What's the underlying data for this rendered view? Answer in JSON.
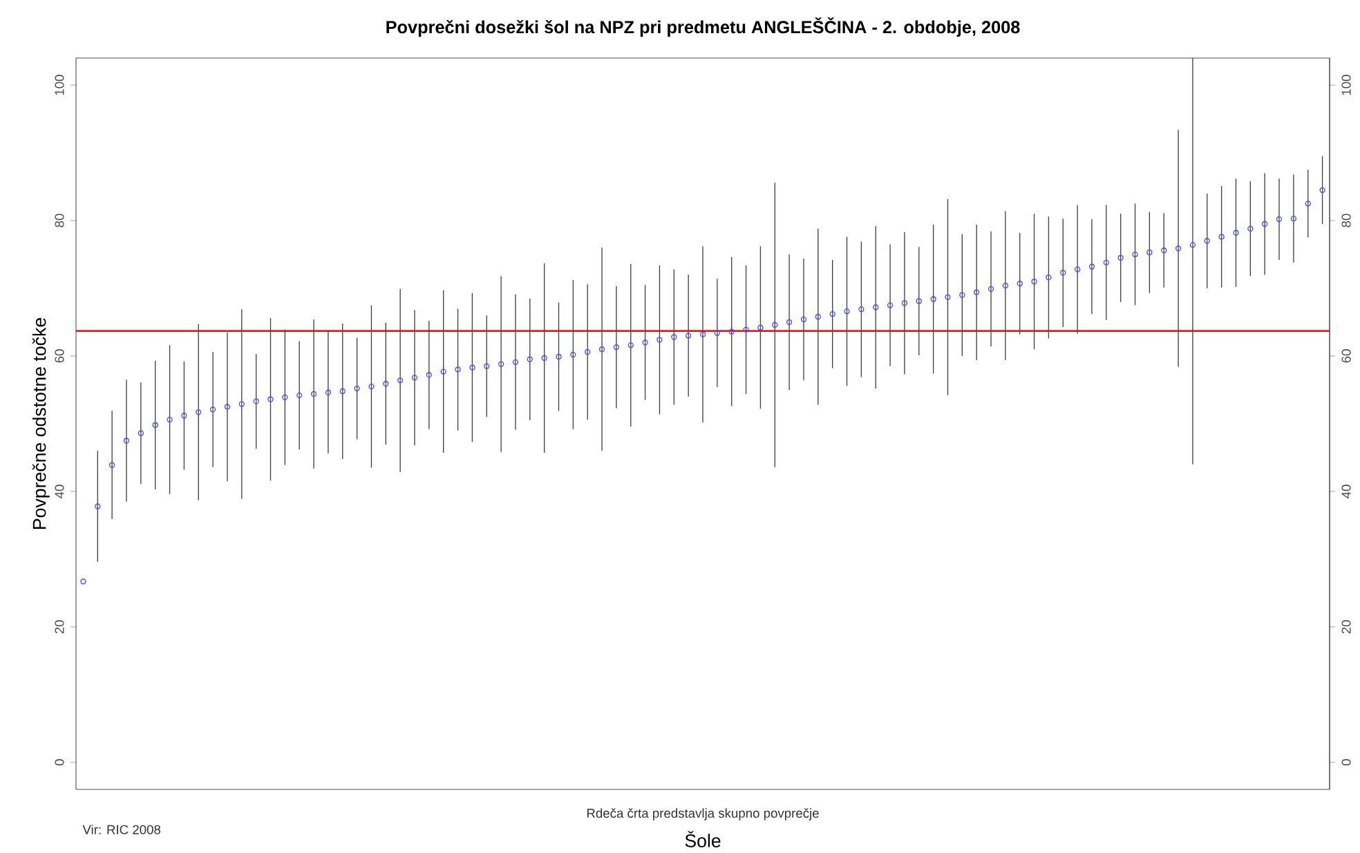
{
  "chart_data": {
    "type": "scatter",
    "title": "Povprečni dosežki šol na NPZ pri predmetu ANGLEŠČINA - 2. obdobje, 2008",
    "xlabel": "Šole",
    "ylabel": "Povprečne odstotne točke",
    "annotations": [
      "Rdeča črta predstavlja skupno povprečje",
      "Vir: RIC 2008"
    ],
    "categories": [
      null,
      null,
      null,
      null,
      null,
      null,
      null,
      null,
      null,
      null,
      null,
      null,
      null,
      null,
      null,
      null,
      null,
      null,
      null,
      null,
      null,
      null,
      null,
      null,
      null,
      null,
      null,
      null,
      null,
      null,
      null,
      null,
      null,
      null,
      null,
      null,
      null,
      null,
      null,
      null,
      null,
      null,
      null,
      null,
      null,
      null,
      null,
      null,
      null,
      null,
      null,
      null,
      null,
      null,
      null,
      null,
      null,
      null,
      null,
      null,
      null,
      null,
      null,
      null,
      null,
      null,
      null,
      null,
      null,
      null,
      null,
      null,
      null,
      null,
      null,
      null,
      null,
      null,
      null,
      null,
      null,
      null,
      null,
      null,
      null,
      null,
      null
    ],
    "series": [
      {
        "color": "#4848ff",
        "values": [
          26.7,
          37.8,
          43.9,
          47.5,
          48.6,
          49.8,
          50.6,
          51.2,
          51.7,
          52.1,
          52.5,
          52.9,
          53.3,
          53.6,
          53.9,
          54.2,
          54.4,
          54.6,
          54.8,
          55.2,
          55.5,
          55.9,
          56.4,
          56.8,
          57.2,
          57.7,
          58.0,
          58.3,
          58.5,
          58.8,
          59.1,
          59.5,
          59.7,
          59.9,
          60.2,
          60.6,
          61.0,
          61.3,
          61.6,
          62.0,
          62.4,
          62.8,
          63.0,
          63.2,
          63.4,
          63.6,
          63.9,
          64.2,
          64.6,
          65.0,
          65.4,
          65.8,
          66.2,
          66.6,
          66.9,
          67.2,
          67.5,
          67.8,
          68.1,
          68.4,
          68.7,
          69.0,
          69.4,
          69.9,
          70.4,
          70.7,
          71.0,
          71.6,
          72.3,
          72.8,
          73.2,
          73.8,
          74.5,
          75.0,
          75.3,
          75.6,
          75.9,
          76.4,
          77.0,
          77.6,
          78.2,
          78.8,
          79.5,
          80.2,
          80.3,
          82.5,
          84.5
        ],
        "errors": [
          null,
          8.2,
          8,
          9,
          7.5,
          9.5,
          11,
          8,
          13,
          8.5,
          11,
          14,
          7,
          12,
          10,
          8,
          11,
          9,
          10,
          7.5,
          12,
          9,
          13.5,
          10,
          8,
          12,
          9,
          11,
          7.5,
          13,
          10,
          9,
          14,
          8,
          11,
          10,
          15,
          9,
          12,
          8.5,
          11,
          10,
          9,
          13,
          8,
          11,
          9.5,
          12,
          21,
          10,
          9,
          13,
          8,
          11,
          10,
          12,
          9,
          10.5,
          8,
          11,
          14.5,
          9,
          10,
          8.5,
          11,
          7.5,
          10,
          9,
          8,
          9.5,
          7,
          8.5,
          6.5,
          7.5,
          6,
          5.5,
          17.5,
          [
            44,
            104
          ],
          7,
          7.5,
          8,
          7,
          7.5,
          6,
          6.5,
          5,
          5
        ]
      }
    ],
    "ylim": [
      -4,
      104
    ],
    "yticks": [
      0,
      20,
      40,
      60,
      80,
      100
    ],
    "y2lim": [
      -4,
      104
    ],
    "y2ticks": [
      0,
      20,
      40,
      60,
      80,
      100
    ],
    "ref_lines": [
      {
        "axis": "y",
        "value": 63.7,
        "color": "#ff0000"
      }
    ],
    "marker": "circle",
    "grid": false,
    "tick_labels": "y"
  }
}
